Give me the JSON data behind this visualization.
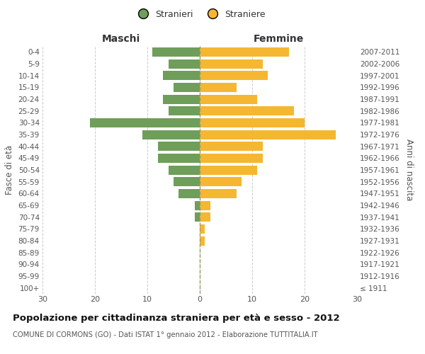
{
  "age_groups": [
    "100+",
    "95-99",
    "90-94",
    "85-89",
    "80-84",
    "75-79",
    "70-74",
    "65-69",
    "60-64",
    "55-59",
    "50-54",
    "45-49",
    "40-44",
    "35-39",
    "30-34",
    "25-29",
    "20-24",
    "15-19",
    "10-14",
    "5-9",
    "0-4"
  ],
  "birth_years": [
    "≤ 1911",
    "1912-1916",
    "1917-1921",
    "1922-1926",
    "1927-1931",
    "1932-1936",
    "1937-1941",
    "1942-1946",
    "1947-1951",
    "1952-1956",
    "1957-1961",
    "1962-1966",
    "1967-1971",
    "1972-1976",
    "1977-1981",
    "1982-1986",
    "1987-1991",
    "1992-1996",
    "1997-2001",
    "2002-2006",
    "2007-2011"
  ],
  "maschi": [
    0,
    0,
    0,
    0,
    0,
    0,
    1,
    1,
    4,
    5,
    6,
    8,
    8,
    11,
    21,
    6,
    7,
    5,
    7,
    6,
    9
  ],
  "femmine": [
    0,
    0,
    0,
    0,
    1,
    1,
    2,
    2,
    7,
    8,
    11,
    12,
    12,
    26,
    20,
    18,
    11,
    7,
    13,
    12,
    17
  ],
  "male_color": "#6e9e5a",
  "female_color": "#f5b731",
  "dashed_line_color": "#999966",
  "bg_color": "#ffffff",
  "grid_color": "#cccccc",
  "title": "Popolazione per cittadinanza straniera per età e sesso - 2012",
  "subtitle": "COMUNE DI CORMONS (GO) - Dati ISTAT 1° gennaio 2012 - Elaborazione TUTTITALIA.IT",
  "xlabel_left": "Maschi",
  "xlabel_right": "Femmine",
  "ylabel_left": "Fasce di età",
  "ylabel_right": "Anni di nascita",
  "legend_maschi": "Stranieri",
  "legend_femmine": "Straniere",
  "xlim": 30
}
